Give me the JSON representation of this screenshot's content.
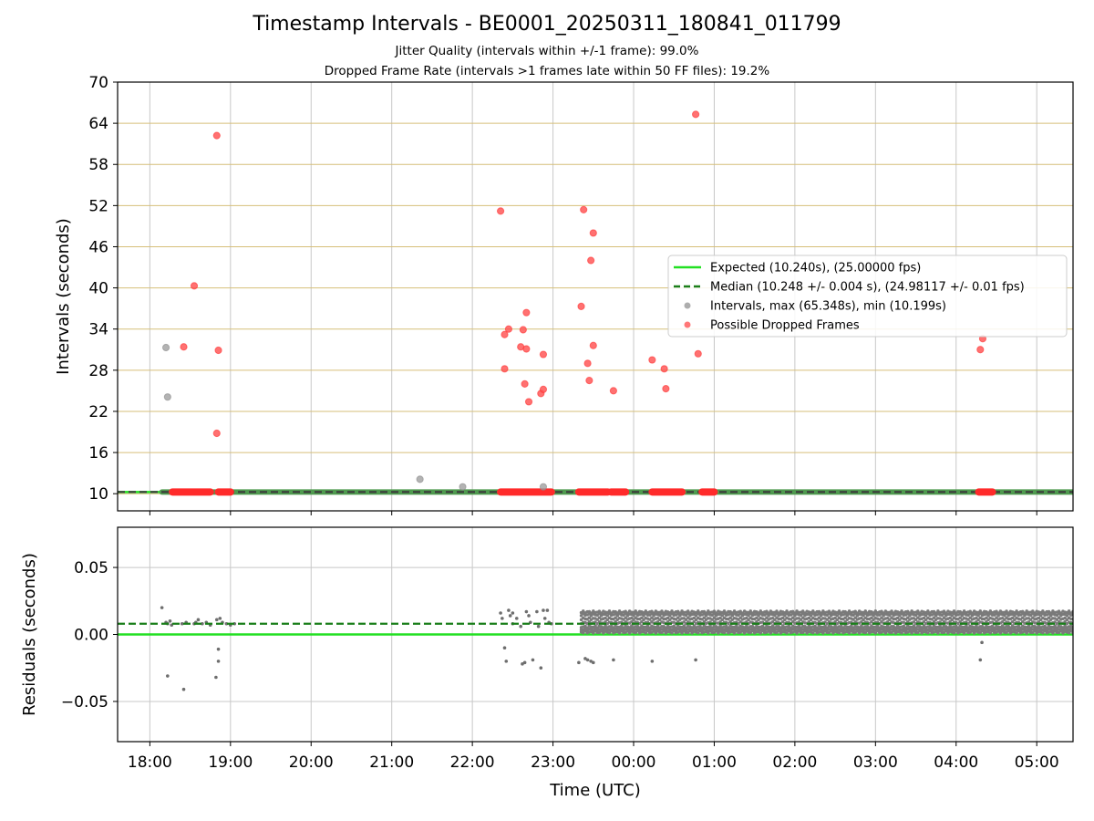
{
  "figure": {
    "title": "Timestamp Intervals - BE0001_20250311_180841_011799",
    "subtitle1": "Jitter Quality (intervals within +/-1 frame): 99.0%",
    "subtitle2": "Dropped Frame Rate (intervals >1 frames late within 50 FF files): 19.2%"
  },
  "chart_data": [
    {
      "type": "scatter",
      "panel": "top",
      "ylabel": "Intervals (seconds)",
      "xlabel": "",
      "x_axis": "Time (UTC), hours since 18:00; values >24 are after midnight",
      "xlim": [
        17.6,
        29.45
      ],
      "ylim": [
        7.5,
        70
      ],
      "yticks": [
        10,
        16,
        22,
        28,
        34,
        40,
        46,
        52,
        58,
        64,
        70
      ],
      "ygrid_color": "#d6bf7a",
      "legend": {
        "position": "right",
        "entries": [
          {
            "label": "Expected (10.240s), (25.00000 fps)",
            "style": "line",
            "color": "#22e022"
          },
          {
            "label": "Median (10.248 +/- 0.004 s), (24.98117 +/- 0.01 fps)",
            "style": "dashed",
            "color": "#1a7f1a"
          },
          {
            "label": "Intervals, max (65.348s), min (10.199s)",
            "style": "dot",
            "color": "#999999"
          },
          {
            "label": "Possible Dropped Frames",
            "style": "dot",
            "color": "#ff5555"
          }
        ]
      },
      "expected": 10.24,
      "median": 10.248,
      "interval_outliers": [
        [
          18.2,
          31.3
        ],
        [
          18.22,
          24.1
        ],
        [
          21.35,
          12.1
        ],
        [
          21.88,
          11.0
        ],
        [
          22.88,
          11.0
        ]
      ],
      "interval_baseline_segments": [
        [
          18.15,
          29.45
        ]
      ],
      "dropped_frames": [
        [
          18.42,
          31.4
        ],
        [
          18.55,
          40.3
        ],
        [
          18.83,
          62.2
        ],
        [
          18.83,
          18.8
        ],
        [
          18.85,
          30.9
        ],
        [
          22.35,
          51.2
        ],
        [
          22.4,
          33.2
        ],
        [
          22.45,
          34.0
        ],
        [
          22.4,
          28.2
        ],
        [
          22.6,
          31.4
        ],
        [
          22.63,
          33.9
        ],
        [
          22.67,
          36.4
        ],
        [
          22.67,
          31.1
        ],
        [
          22.65,
          26.0
        ],
        [
          22.7,
          23.4
        ],
        [
          22.85,
          24.6
        ],
        [
          22.88,
          25.2
        ],
        [
          22.88,
          30.3
        ],
        [
          23.35,
          37.3
        ],
        [
          23.38,
          51.4
        ],
        [
          23.43,
          29.0
        ],
        [
          23.45,
          26.5
        ],
        [
          23.47,
          44.0
        ],
        [
          23.5,
          48.0
        ],
        [
          23.5,
          31.6
        ],
        [
          23.75,
          25.0
        ],
        [
          24.23,
          29.5
        ],
        [
          24.38,
          28.2
        ],
        [
          24.4,
          25.3
        ],
        [
          24.77,
          65.3
        ],
        [
          24.8,
          30.4
        ],
        [
          28.3,
          31.0
        ],
        [
          28.33,
          32.6
        ]
      ],
      "dropped_baseline_segments": [
        [
          18.28,
          18.75
        ],
        [
          18.85,
          19.0
        ],
        [
          22.35,
          22.98
        ],
        [
          23.32,
          23.68
        ],
        [
          23.72,
          23.9
        ],
        [
          24.23,
          24.6
        ],
        [
          24.85,
          25.0
        ],
        [
          28.28,
          28.45
        ]
      ]
    },
    {
      "type": "scatter",
      "panel": "bottom",
      "ylabel": "Residuals (seconds)",
      "xlabel": "Time (UTC)",
      "xlim": [
        17.6,
        29.45
      ],
      "ylim": [
        -0.08,
        0.08
      ],
      "yticks": [
        -0.05,
        0.0,
        0.05
      ],
      "ytick_labels": [
        "−0.05",
        "0.00",
        "0.05"
      ],
      "xticks": [
        18,
        19,
        20,
        21,
        22,
        23,
        24,
        25,
        26,
        27,
        28,
        29
      ],
      "xtick_labels": [
        "18:00",
        "19:00",
        "20:00",
        "21:00",
        "22:00",
        "23:00",
        "00:00",
        "01:00",
        "02:00",
        "03:00",
        "04:00",
        "05:00"
      ],
      "expected": 0.0,
      "median": 0.008,
      "sparse_points": [
        [
          18.15,
          0.02
        ],
        [
          18.2,
          0.009
        ],
        [
          18.22,
          0.008
        ],
        [
          18.25,
          0.01
        ],
        [
          18.27,
          0.007
        ],
        [
          18.22,
          -0.031
        ],
        [
          18.42,
          -0.041
        ],
        [
          18.4,
          0.008
        ],
        [
          18.45,
          0.009
        ],
        [
          18.55,
          0.008
        ],
        [
          18.57,
          0.009
        ],
        [
          18.6,
          0.011
        ],
        [
          18.65,
          0.008
        ],
        [
          18.7,
          0.009
        ],
        [
          18.75,
          0.007
        ],
        [
          18.82,
          -0.032
        ],
        [
          18.85,
          -0.02
        ],
        [
          18.85,
          -0.011
        ],
        [
          18.83,
          0.011
        ],
        [
          18.87,
          0.012
        ],
        [
          18.9,
          0.009
        ],
        [
          18.95,
          0.008
        ],
        [
          19.0,
          0.007
        ],
        [
          19.05,
          0.008
        ],
        [
          22.35,
          0.016
        ],
        [
          22.37,
          0.012
        ],
        [
          22.4,
          -0.01
        ],
        [
          22.42,
          -0.02
        ],
        [
          22.45,
          0.018
        ],
        [
          22.47,
          0.014
        ],
        [
          22.5,
          0.016
        ],
        [
          22.55,
          0.012
        ],
        [
          22.62,
          -0.022
        ],
        [
          22.65,
          -0.021
        ],
        [
          22.67,
          0.017
        ],
        [
          22.7,
          0.014
        ],
        [
          22.75,
          -0.019
        ],
        [
          22.8,
          0.017
        ],
        [
          22.85,
          -0.025
        ],
        [
          22.88,
          0.018
        ],
        [
          22.9,
          0.012
        ],
        [
          22.93,
          0.018
        ],
        [
          22.95,
          0.009
        ],
        [
          22.5,
          0.008
        ],
        [
          22.6,
          0.006
        ],
        [
          22.72,
          0.009
        ],
        [
          22.82,
          0.006
        ],
        [
          22.98,
          0.008
        ],
        [
          23.32,
          -0.021
        ],
        [
          23.4,
          -0.018
        ],
        [
          23.43,
          -0.019
        ],
        [
          23.47,
          -0.02
        ],
        [
          23.5,
          -0.021
        ],
        [
          23.75,
          -0.019
        ],
        [
          24.23,
          -0.02
        ],
        [
          24.77,
          -0.019
        ],
        [
          28.3,
          -0.019
        ],
        [
          28.32,
          -0.006
        ]
      ],
      "dense_band": {
        "x_start": 23.35,
        "x_end": 29.45,
        "y_values": [
          0.001,
          0.003,
          0.005,
          0.008,
          0.011,
          0.014,
          0.016
        ]
      }
    }
  ]
}
